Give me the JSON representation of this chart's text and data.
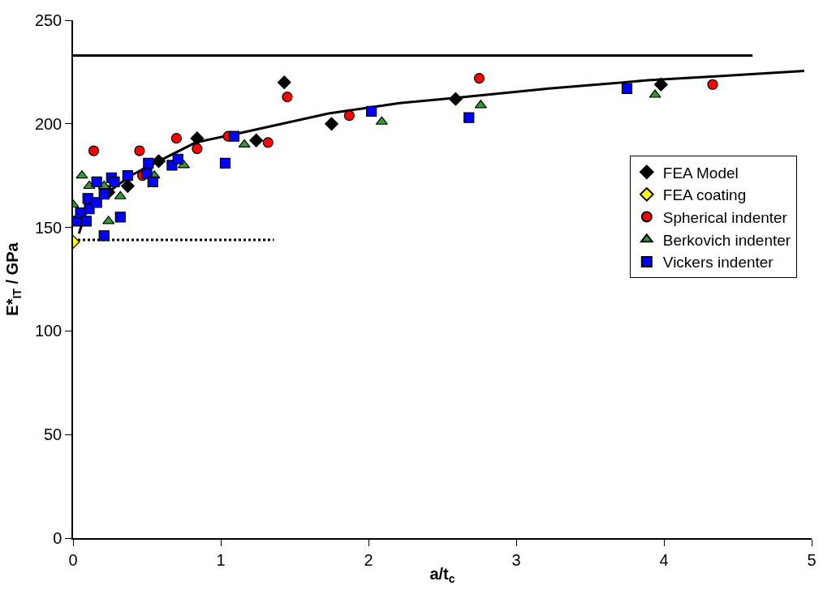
{
  "chart_data": {
    "type": "scatter",
    "xlabel": "a/t$_{c}$",
    "ylabel": "E*$_{IT}$ / GPa",
    "xlim": [
      0,
      5
    ],
    "ylim": [
      0,
      250
    ],
    "xticks": [
      0,
      1,
      2,
      3,
      4,
      5
    ],
    "yticks": [
      0,
      50,
      100,
      150,
      200,
      250
    ],
    "legend": "right",
    "series": [
      {
        "type": "line",
        "color": "#000000",
        "line_style": "solid",
        "marker": "none",
        "x": [
          0,
          4.6
        ],
        "values": [
          233,
          233
        ]
      },
      {
        "type": "line",
        "color": "#000000",
        "line_style": "dotted",
        "marker": "none",
        "x": [
          0,
          1.36
        ],
        "values": [
          144,
          144
        ]
      },
      {
        "type": "line",
        "color": "#000000",
        "line_style": "solid",
        "marker": "none",
        "x": [
          0.04,
          0.08,
          0.18,
          0.39,
          0.58,
          0.83,
          1.16,
          1.73,
          2.21,
          2.59,
          3.22,
          3.89,
          4.37,
          4.95
        ],
        "values": [
          147,
          156,
          164,
          175,
          182,
          191,
          196,
          205,
          210,
          212.5,
          217,
          221,
          223,
          225.5
        ]
      },
      {
        "name": "FEA Model",
        "color": "#000000",
        "marker": "diamond",
        "x": [
          0.24,
          0.37,
          0.58,
          0.84,
          1.24,
          1.43,
          1.75,
          2.59,
          3.98
        ],
        "values": [
          167,
          170,
          182,
          193,
          192,
          220,
          200,
          212,
          219
        ]
      },
      {
        "name": "FEA coating",
        "color": "#ffff00",
        "marker": "diamond",
        "x": [
          0
        ],
        "values": [
          143
        ]
      },
      {
        "name": "Spherical indenter",
        "color": "#ff0000",
        "marker": "circle",
        "x": [
          0.14,
          0.45,
          0.47,
          0.7,
          0.84,
          1.05,
          1.32,
          1.45,
          1.87,
          2.75,
          4.33
        ],
        "values": [
          187,
          187,
          175,
          193,
          188,
          194,
          191,
          213,
          204,
          222,
          219
        ]
      },
      {
        "name": "Berkovich indenter",
        "color": "#339933",
        "marker": "triangle",
        "x": [
          0,
          0.06,
          0.11,
          0.21,
          0.24,
          0.32,
          0.55,
          0.75,
          1.16,
          2.09,
          2.76,
          3.94
        ],
        "values": [
          161,
          175,
          170,
          170,
          153,
          165,
          175,
          180,
          190,
          201,
          209,
          214
        ]
      },
      {
        "name": "Vickers indenter",
        "color": "#0000ff",
        "marker": "square",
        "x": [
          0.02,
          0.05,
          0.09,
          0.1,
          0.11,
          0.16,
          0.16,
          0.21,
          0.21,
          0.26,
          0.28,
          0.32,
          0.37,
          0.5,
          0.51,
          0.54,
          0.67,
          0.71,
          1.03,
          1.09,
          2.02,
          2.68,
          3.75
        ],
        "values": [
          153,
          157,
          153,
          164,
          159,
          172,
          162,
          166,
          146,
          174,
          172,
          155,
          175,
          176,
          181,
          172,
          180,
          183,
          181,
          194,
          206,
          203,
          217
        ]
      }
    ]
  }
}
